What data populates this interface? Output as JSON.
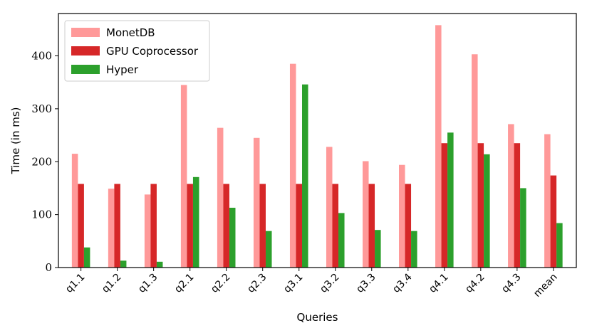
{
  "chart_data": {
    "type": "bar",
    "xlabel": "Queries",
    "ylabel": "Time (in ms)",
    "ylim": [
      0,
      480
    ],
    "yticks": [
      0,
      100,
      200,
      300,
      400
    ],
    "categories": [
      "q1.1",
      "q1.2",
      "q1.3",
      "q2.1",
      "q2.2",
      "q2.3",
      "q3.1",
      "q3.2",
      "q3.3",
      "q3.4",
      "q4.1",
      "q4.2",
      "q4.3",
      "mean"
    ],
    "legend_position": "top-left",
    "grid": false,
    "series": [
      {
        "name": "MonetDB",
        "color": "#ff9999",
        "values": [
          215,
          149,
          138,
          345,
          264,
          245,
          385,
          228,
          201,
          194,
          458,
          403,
          271,
          252
        ]
      },
      {
        "name": "GPU Coprocessor",
        "color": "#d62728",
        "values": [
          158,
          158,
          158,
          158,
          158,
          158,
          158,
          158,
          158,
          158,
          235,
          235,
          235,
          174
        ]
      },
      {
        "name": "Hyper",
        "color": "#2ca02c",
        "values": [
          38,
          13,
          11,
          171,
          113,
          69,
          346,
          103,
          71,
          69,
          255,
          214,
          150,
          84
        ]
      }
    ]
  }
}
